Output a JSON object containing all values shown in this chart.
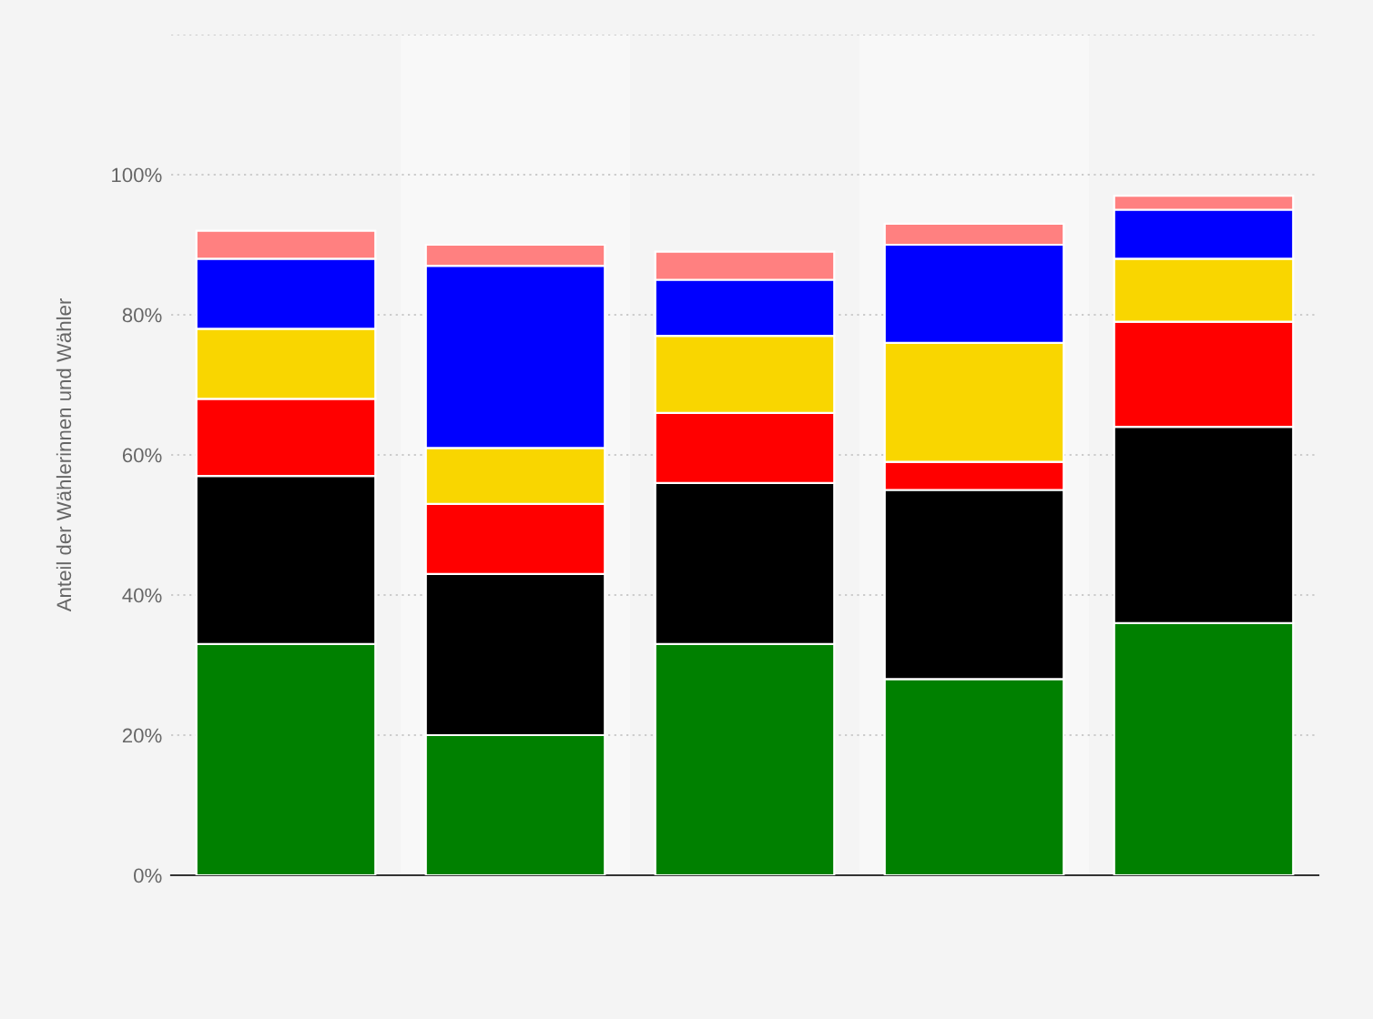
{
  "chart_data": {
    "type": "bar",
    "stacked": true,
    "ylabel": "Anteil der Wählerinnen und Wähler",
    "categories": [
      null,
      null,
      null,
      null,
      null
    ],
    "series": [
      {
        "color": "#008000",
        "values": [
          33,
          20,
          33,
          28,
          36
        ]
      },
      {
        "color": "#000000",
        "values": [
          24,
          23,
          23,
          27,
          28
        ]
      },
      {
        "color": "#ff0000",
        "values": [
          11,
          10,
          10,
          4,
          15
        ]
      },
      {
        "color": "#f9d600",
        "values": [
          10,
          8,
          11,
          17,
          9
        ]
      },
      {
        "color": "#0000ff",
        "values": [
          10,
          26,
          8,
          14,
          7
        ]
      },
      {
        "color": "#ff8080",
        "values": [
          4,
          3,
          4,
          3,
          2
        ]
      }
    ],
    "ylim": [
      0,
      120
    ],
    "yticks": [
      {
        "value": 0,
        "label": "0%"
      },
      {
        "value": 20,
        "label": "20%"
      },
      {
        "value": 40,
        "label": "40%"
      },
      {
        "value": 60,
        "label": "60%"
      },
      {
        "value": 80,
        "label": "80%"
      },
      {
        "value": 100,
        "label": "100%"
      },
      {
        "value": 120,
        "label": null
      }
    ],
    "grid": "y"
  }
}
